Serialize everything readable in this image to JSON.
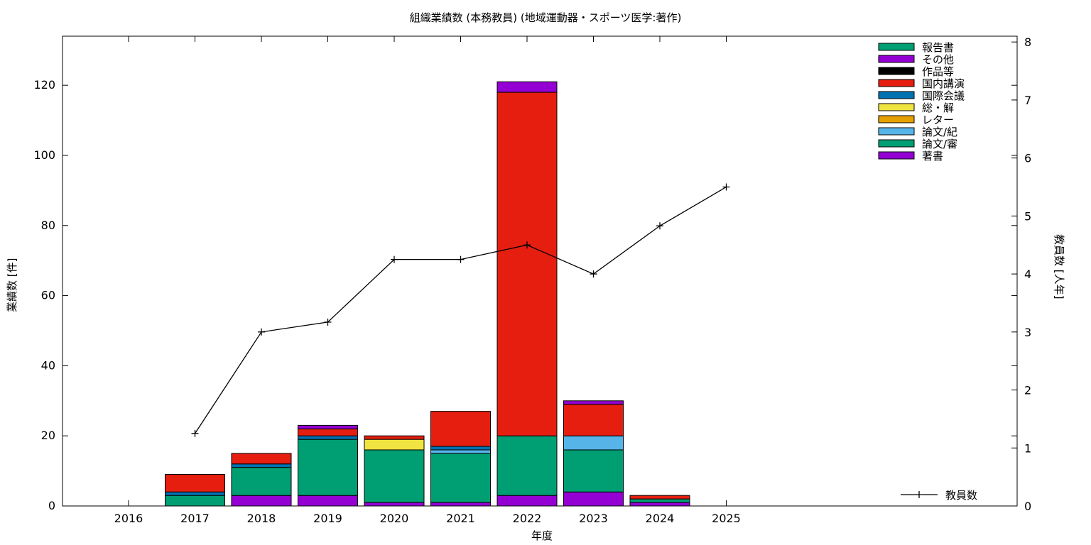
{
  "chart_data": {
    "type": "bar",
    "title": "組織業績数 (本務教員) (地域運動器・スポーツ医学:著作)",
    "xlabel": "年度",
    "ylabel": "業績数 [件]",
    "y2label": "教員数 [人年]",
    "categories": [
      "2016",
      "2017",
      "2018",
      "2019",
      "2020",
      "2021",
      "2022",
      "2023",
      "2024",
      "2025"
    ],
    "ylim": [
      0,
      134
    ],
    "y2lim": [
      0,
      8.1
    ],
    "yticks": [
      0,
      20,
      40,
      60,
      80,
      100,
      120
    ],
    "y2ticks": [
      0,
      1,
      2,
      3,
      4,
      5,
      6,
      7,
      8
    ],
    "stacked": true,
    "series": [
      {
        "name": "著書",
        "color": "#9400d3",
        "values": [
          0,
          0,
          3,
          3,
          1,
          1,
          3,
          4,
          1,
          0
        ]
      },
      {
        "name": "論文/審",
        "color": "#009e73",
        "values": [
          0,
          3,
          8,
          16,
          15,
          14,
          17,
          12,
          1,
          0
        ]
      },
      {
        "name": "論文/紀",
        "color": "#56b4e9",
        "values": [
          0,
          0,
          0,
          0,
          0,
          1,
          0,
          4,
          0,
          0
        ]
      },
      {
        "name": "レター",
        "color": "#e69f00",
        "values": [
          0,
          0,
          0,
          0,
          0,
          0,
          0,
          0,
          0,
          0
        ]
      },
      {
        "name": "総・解",
        "color": "#f0e442",
        "values": [
          0,
          0,
          0,
          0,
          3,
          0,
          0,
          0,
          0,
          0
        ]
      },
      {
        "name": "国際会議",
        "color": "#0072b2",
        "values": [
          0,
          1,
          1,
          1,
          0,
          1,
          0,
          0,
          0,
          0
        ]
      },
      {
        "name": "国内講演",
        "color": "#e51e10",
        "values": [
          0,
          5,
          3,
          2,
          1,
          10,
          98,
          9,
          1,
          0
        ]
      },
      {
        "name": "作品等",
        "color": "#000000",
        "values": [
          0,
          0,
          0,
          0,
          0,
          0,
          0,
          0,
          0,
          0
        ]
      },
      {
        "name": "その他",
        "color": "#9400d3",
        "values": [
          0,
          0,
          0,
          1,
          0,
          0,
          3,
          1,
          0,
          0
        ]
      },
      {
        "name": "報告書",
        "color": "#009e73",
        "values": [
          0,
          0,
          0,
          0,
          0,
          0,
          0,
          0,
          0,
          0
        ]
      }
    ],
    "line": {
      "name": "教員数",
      "axis": "y2",
      "x": [
        "2017",
        "2018",
        "2019",
        "2020",
        "2021",
        "2022",
        "2023",
        "2024",
        "2025"
      ],
      "values": [
        1.25,
        3.0,
        3.17,
        4.25,
        4.25,
        4.5,
        4.0,
        4.83,
        5.5
      ]
    },
    "legend_order": [
      "報告書",
      "その他",
      "作品等",
      "国内講演",
      "国際会議",
      "総・解",
      "レター",
      "論文/紀",
      "論文/審",
      "著書"
    ],
    "legend_position": "top-right",
    "grid": false
  }
}
